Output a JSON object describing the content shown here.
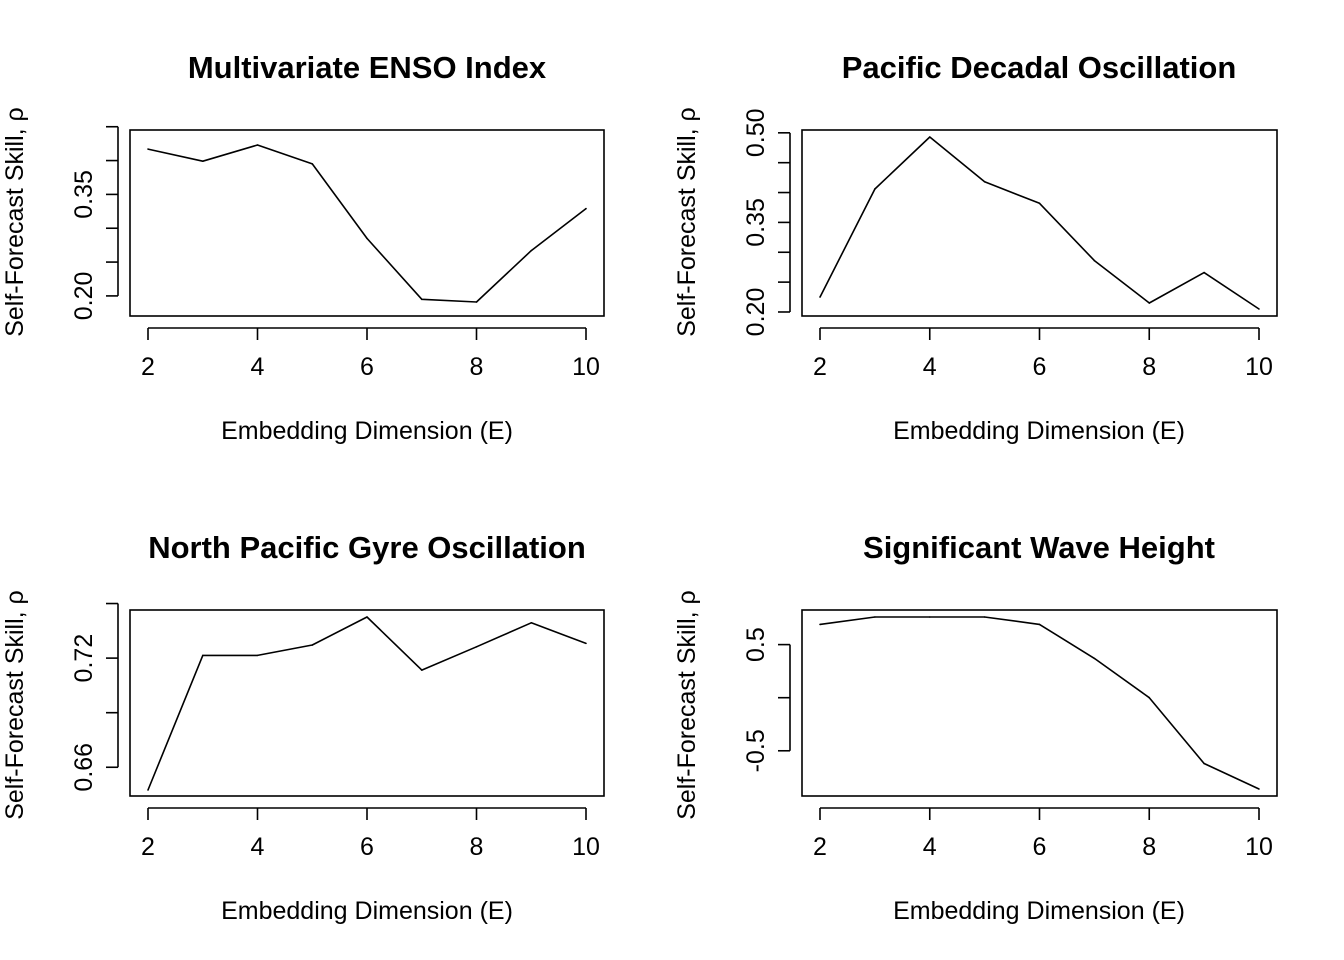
{
  "chart_data": [
    {
      "type": "line",
      "title": "Multivariate ENSO Index",
      "xlabel": "Embedding Dimension (E)",
      "ylabel": "Self-Forecast Skill, ρ",
      "x": [
        2,
        3,
        4,
        5,
        6,
        7,
        8,
        9,
        10
      ],
      "values": [
        0.417,
        0.399,
        0.423,
        0.395,
        0.285,
        0.195,
        0.191,
        0.267,
        0.329
      ],
      "xlim": [
        2,
        10
      ],
      "ylim": [
        0.191,
        0.423
      ],
      "x_ticks": [
        "2",
        "4",
        "6",
        "8",
        "10"
      ],
      "y_ticks": [
        "0.20",
        "0.35"
      ],
      "y_ticks_unlabeled": [
        0.25,
        0.3,
        0.4,
        0.45
      ],
      "color": "#000000",
      "grid": false,
      "legend": "none"
    },
    {
      "type": "line",
      "title": "Pacific Decadal Oscillation",
      "xlabel": "Embedding Dimension (E)",
      "ylabel": "Self-Forecast Skill, ρ",
      "x": [
        2,
        3,
        4,
        5,
        6,
        7,
        8,
        9,
        10
      ],
      "values": [
        0.225,
        0.406,
        0.493,
        0.418,
        0.382,
        0.286,
        0.215,
        0.266,
        0.205
      ],
      "xlim": [
        2,
        10
      ],
      "ylim": [
        0.205,
        0.493
      ],
      "x_ticks": [
        "2",
        "4",
        "6",
        "8",
        "10"
      ],
      "y_ticks": [
        "0.20",
        "0.35",
        "0.50"
      ],
      "y_ticks_unlabeled": [
        0.25,
        0.3,
        0.4,
        0.45
      ],
      "color": "#000000",
      "grid": false,
      "legend": "none"
    },
    {
      "type": "line",
      "title": "North Pacific Gyre Oscillation",
      "xlabel": "Embedding Dimension (E)",
      "ylabel": "Self-Forecast Skill, ρ",
      "x": [
        2,
        3,
        4,
        5,
        6,
        7,
        8,
        9,
        10
      ],
      "values": [
        0.6475,
        0.7215,
        0.7215,
        0.7272,
        0.7426,
        0.7134,
        0.7262,
        0.7394,
        0.7281
      ],
      "xlim": [
        2,
        10
      ],
      "ylim": [
        0.6475,
        0.7426
      ],
      "x_ticks": [
        "2",
        "4",
        "6",
        "8",
        "10"
      ],
      "y_ticks": [
        "0.66",
        "0.72"
      ],
      "y_ticks_unlabeled": [
        0.69,
        0.75
      ],
      "color": "#000000",
      "grid": false,
      "legend": "none"
    },
    {
      "type": "line",
      "title": "Significant Wave Height",
      "xlabel": "Embedding Dimension (E)",
      "ylabel": "Self-Forecast Skill, ρ",
      "x": [
        2,
        3,
        4,
        5,
        6,
        7,
        8,
        9,
        10
      ],
      "values": [
        0.69,
        0.76,
        0.76,
        0.76,
        0.69,
        0.37,
        0.0,
        -0.62,
        -0.86
      ],
      "xlim": [
        2,
        10
      ],
      "ylim": [
        -0.86,
        0.76
      ],
      "x_ticks": [
        "2",
        "4",
        "6",
        "8",
        "10"
      ],
      "y_ticks": [
        "-0.5",
        "0.5"
      ],
      "y_ticks_unlabeled": [
        0.0
      ],
      "color": "#000000",
      "grid": false,
      "legend": "none"
    }
  ]
}
